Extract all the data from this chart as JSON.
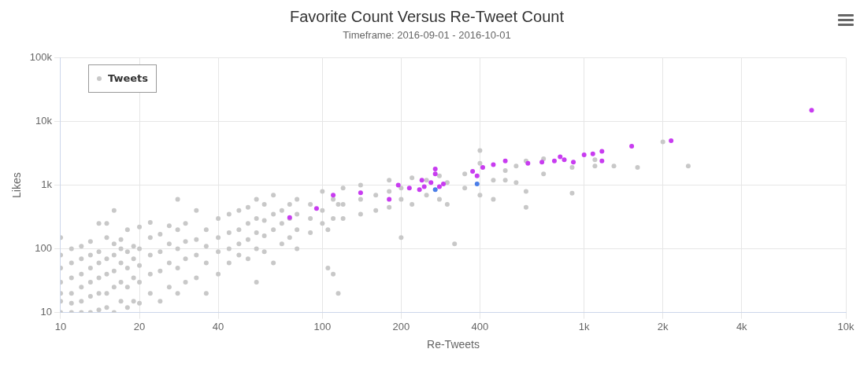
{
  "chart_data": {
    "type": "scatter",
    "title": "Favorite Count Versus Re-Tweet Count",
    "subtitle": "Timeframe: 2016-09-01 - 2016-10-01",
    "xlabel": "Re-Tweets",
    "ylabel": "Likes",
    "log": "xy",
    "grid": true,
    "legend": "top left",
    "marker": "circle",
    "xlim": [
      10,
      10000
    ],
    "xticks": [
      10,
      20,
      40,
      100,
      200,
      400,
      {
        "value": 1000,
        "label": "1k"
      },
      {
        "value": 2000,
        "label": "2k"
      },
      {
        "value": 4000,
        "label": "4k"
      },
      {
        "value": 10000,
        "label": "10k"
      }
    ],
    "ylim": [
      10,
      100000
    ],
    "yticks": [
      10,
      100,
      {
        "value": 1000,
        "label": "1k"
      },
      {
        "value": 10000,
        "label": "10k"
      },
      {
        "value": 100000,
        "label": "100k"
      }
    ],
    "series": [
      {
        "name": "Tweets",
        "color": "#c8c8c8",
        "x": [
          10,
          10,
          10,
          10,
          10,
          10,
          10,
          11,
          11,
          11,
          11,
          11,
          11,
          12,
          12,
          12,
          12,
          12,
          12,
          13,
          13,
          13,
          13,
          13,
          13,
          14,
          14,
          14,
          14,
          14,
          14,
          15,
          15,
          15,
          15,
          15,
          15,
          16,
          16,
          16,
          16,
          16,
          16,
          17,
          17,
          17,
          17,
          17,
          18,
          18,
          18,
          18,
          18,
          19,
          19,
          19,
          19,
          20,
          20,
          20,
          20,
          20,
          22,
          22,
          22,
          22,
          22,
          24,
          24,
          24,
          24,
          26,
          26,
          26,
          26,
          28,
          28,
          28,
          28,
          28,
          30,
          30,
          30,
          30,
          33,
          33,
          33,
          33,
          36,
          36,
          36,
          36,
          40,
          40,
          40,
          40,
          44,
          44,
          44,
          44,
          48,
          48,
          48,
          48,
          52,
          52,
          52,
          52,
          56,
          56,
          56,
          56,
          56,
          60,
          60,
          60,
          60,
          65,
          65,
          65,
          65,
          70,
          70,
          70,
          75,
          75,
          75,
          80,
          80,
          80,
          80,
          90,
          90,
          90,
          100,
          100,
          100,
          105,
          105,
          110,
          110,
          110,
          115,
          115,
          120,
          120,
          120,
          140,
          140,
          140,
          160,
          160,
          180,
          180,
          180,
          200,
          200,
          200,
          220,
          220,
          250,
          250,
          280,
          280,
          300,
          300,
          320,
          350,
          350,
          400,
          400,
          400,
          450,
          450,
          500,
          500,
          550,
          550,
          600,
          600,
          600,
          700,
          700,
          900,
          900,
          1100,
          1100,
          1300,
          1600,
          2000,
          2500
        ],
        "values": [
          10,
          15,
          20,
          30,
          50,
          80,
          150,
          10,
          14,
          20,
          35,
          60,
          100,
          10,
          15,
          25,
          40,
          70,
          110,
          10,
          18,
          30,
          50,
          80,
          130,
          11,
          20,
          35,
          60,
          90,
          250,
          12,
          20,
          40,
          70,
          150,
          250,
          10,
          25,
          45,
          80,
          120,
          400,
          15,
          30,
          60,
          100,
          140,
          12,
          25,
          50,
          90,
          200,
          15,
          35,
          70,
          110,
          14,
          30,
          55,
          100,
          220,
          20,
          40,
          80,
          150,
          260,
          15,
          45,
          90,
          170,
          25,
          60,
          120,
          230,
          20,
          50,
          100,
          200,
          600,
          30,
          70,
          130,
          250,
          35,
          80,
          140,
          400,
          20,
          60,
          110,
          200,
          40,
          90,
          150,
          300,
          60,
          100,
          180,
          350,
          80,
          120,
          200,
          400,
          70,
          140,
          250,
          450,
          30,
          100,
          180,
          300,
          600,
          90,
          160,
          280,
          500,
          60,
          200,
          350,
          700,
          120,
          250,
          400,
          150,
          300,
          500,
          100,
          200,
          350,
          600,
          180,
          300,
          500,
          250,
          400,
          800,
          50,
          200,
          40,
          300,
          600,
          20,
          500,
          300,
          500,
          900,
          350,
          600,
          1000,
          400,
          700,
          450,
          800,
          1200,
          150,
          600,
          900,
          500,
          1300,
          700,
          1200,
          600,
          1400,
          500,
          1100,
          120,
          900,
          1500,
          3500,
          700,
          2200,
          600,
          1200,
          1200,
          1700,
          1100,
          2000,
          450,
          2400,
          800,
          1500,
          2600,
          750,
          1900,
          2000,
          2500,
          2000,
          1900,
          4800,
          2000
        ]
      },
      {
        "color": "#4a7ee8",
        "x": [
          390,
          270
        ],
        "values": [
          1050,
          850
        ]
      },
      {
        "color": "#c83cf0",
        "x": [
          7400,
          2150,
          1520,
          1170,
          1170,
          1080,
          1000,
          910,
          840,
          810,
          770,
          690,
          610,
          500,
          450,
          410,
          375,
          390,
          270,
          270,
          290,
          280,
          260,
          245,
          240,
          235,
          215,
          195,
          180,
          140,
          110,
          95,
          75
        ],
        "values": [
          15000,
          5000,
          4100,
          3400,
          2400,
          3100,
          3000,
          2300,
          2500,
          2800,
          2400,
          2300,
          2200,
          2400,
          2100,
          1900,
          1650,
          1400,
          1800,
          1500,
          1050,
          950,
          1100,
          950,
          1200,
          850,
          900,
          1000,
          600,
          760,
          700,
          430,
          310
        ]
      }
    ]
  }
}
